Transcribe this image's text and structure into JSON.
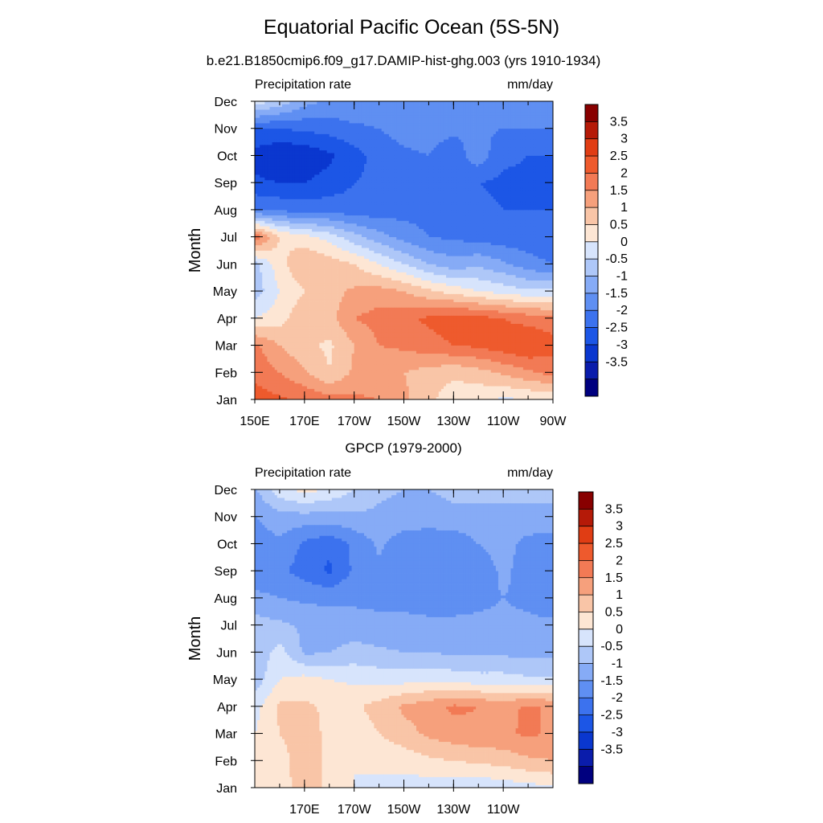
{
  "figure": {
    "title": "Equatorial Pacific Ocean (5S-5N)"
  },
  "colorbar": {
    "levels": [
      -3.5,
      -3,
      -2.5,
      -2,
      -1.5,
      -1,
      -0.5,
      0,
      0.5,
      1,
      1.5,
      2,
      2.5,
      3,
      3.5
    ],
    "labels": [
      "3.5",
      "3",
      "2.5",
      "2",
      "1.5",
      "1",
      "0.5",
      "0",
      "-0.5",
      "-1",
      "-1.5",
      "-2",
      "-2.5",
      "-3",
      "-3.5"
    ],
    "colors_low_to_high": [
      "#00007f",
      "#0a1cab",
      "#0a37cf",
      "#1c56e6",
      "#3c72ee",
      "#5f8ff2",
      "#86abf6",
      "#aec7f8",
      "#d7e4fc",
      "#fde6d4",
      "#f9c5a7",
      "#f6a07c",
      "#f27a55",
      "#ee5a2d",
      "#e03d14",
      "#b51a08",
      "#880000"
    ]
  },
  "chart_data": [
    {
      "type": "heatmap",
      "title": "b.e21.B1850cmip6.f09_g17.DAMIP-hist-ghg.003 (yrs 1910-1934)",
      "left_label": "Precipitation rate",
      "right_label": "mm/day",
      "ylabel": "Month",
      "x_ticks": [
        "150E",
        "170E",
        "170W",
        "150W",
        "130W",
        "110W",
        "90W"
      ],
      "y_ticks": [
        "Jan",
        "Feb",
        "Mar",
        "Apr",
        "May",
        "Jun",
        "Jul",
        "Aug",
        "Sep",
        "Oct",
        "Nov",
        "Dec"
      ],
      "xlim": [
        150,
        270
      ],
      "x_grid": [
        150,
        160,
        170,
        180,
        190,
        200,
        210,
        220,
        230,
        240,
        250,
        260,
        270
      ],
      "rows": [
        [
          2.7,
          2.6,
          2.4,
          2.2,
          2.1,
          2.0,
          1.6,
          1.1,
          0.7,
          0.6,
          0.4,
          0.5,
          0.5
        ],
        [
          2.4,
          2.0,
          1.6,
          1.0,
          1.6,
          1.7,
          1.5,
          1.3,
          1.1,
          1.3,
          1.6,
          1.9,
          2.2
        ],
        [
          2.1,
          1.5,
          1.1,
          0.9,
          1.5,
          2.0,
          2.1,
          2.3,
          2.5,
          2.6,
          2.8,
          3.0,
          2.7
        ],
        [
          0.5,
          0.8,
          1.4,
          1.3,
          2.0,
          2.2,
          2.4,
          2.6,
          2.8,
          2.7,
          2.5,
          2.3,
          2.2
        ],
        [
          -0.3,
          0.5,
          1.0,
          1.3,
          1.6,
          1.7,
          1.5,
          1.1,
          0.8,
          0.5,
          0.3,
          0.1,
          0.1
        ],
        [
          -0.2,
          0.8,
          1.5,
          1.3,
          1.0,
          0.5,
          0.0,
          -0.5,
          -0.8,
          -0.6,
          -0.9,
          -1.3,
          -1.5
        ],
        [
          2.4,
          1.0,
          0.7,
          0.3,
          -0.3,
          -0.8,
          -1.2,
          -1.5,
          -1.6,
          -1.7,
          -1.8,
          -1.8,
          -1.9
        ],
        [
          -1.5,
          -1.6,
          -1.7,
          -1.7,
          -1.8,
          -1.8,
          -1.7,
          -1.7,
          -1.8,
          -1.9,
          -2.0,
          -2.0,
          -2.0
        ],
        [
          -2.4,
          -2.5,
          -2.5,
          -2.3,
          -2.0,
          -1.9,
          -1.7,
          -1.6,
          -1.6,
          -2.0,
          -2.1,
          -2.1,
          -2.1
        ],
        [
          -2.7,
          -3.0,
          -2.9,
          -2.6,
          -2.2,
          -1.8,
          -1.6,
          -1.5,
          -1.8,
          -1.2,
          -1.9,
          -2.0,
          -2.0
        ],
        [
          -2.0,
          -2.0,
          -1.9,
          -1.8,
          -1.6,
          -1.5,
          -1.3,
          -1.3,
          -1.4,
          -1.4,
          -1.5,
          -1.5,
          -1.5
        ],
        [
          0.3,
          -0.2,
          -0.8,
          -1.1,
          -1.1,
          -1.2,
          -1.2,
          -1.2,
          -1.2,
          -1.2,
          -1.3,
          -1.3,
          -1.3
        ]
      ]
    },
    {
      "type": "heatmap",
      "title": "GPCP (1979-2000)",
      "left_label": "Precipitation rate",
      "right_label": "mm/day",
      "ylabel": "Month",
      "x_ticks": [
        "170E",
        "170W",
        "150W",
        "130W",
        "110W"
      ],
      "y_ticks": [
        "Jan",
        "Feb",
        "Mar",
        "Apr",
        "May",
        "Jun",
        "Jul",
        "Aug",
        "Sep",
        "Oct",
        "Nov",
        "Dec"
      ],
      "xlim": [
        150,
        270
      ],
      "x_grid": [
        150,
        160,
        170,
        180,
        190,
        200,
        210,
        220,
        230,
        240,
        250,
        260,
        270
      ],
      "rows": [
        [
          0.5,
          0.8,
          1.2,
          0.9,
          0.5,
          0.4,
          0.3,
          0.2,
          0.1,
          0.1,
          0.2,
          0.3,
          0.4
        ],
        [
          0.6,
          0.8,
          1.3,
          0.9,
          0.5,
          0.6,
          0.7,
          0.9,
          1.0,
          1.1,
          1.2,
          1.4,
          1.5
        ],
        [
          0.5,
          1.0,
          1.2,
          0.9,
          0.7,
          1.0,
          1.3,
          1.6,
          1.8,
          1.9,
          1.9,
          2.1,
          1.9
        ],
        [
          0.3,
          1.1,
          1.1,
          0.9,
          0.9,
          1.2,
          1.6,
          1.8,
          2.1,
          2.0,
          1.8,
          2.1,
          1.9
        ],
        [
          -0.3,
          0.5,
          0.7,
          0.5,
          0.4,
          0.3,
          0.3,
          0.4,
          0.3,
          0.2,
          0.2,
          0.1,
          0.1
        ],
        [
          -0.4,
          0.2,
          -0.6,
          -0.5,
          -0.3,
          -0.4,
          -0.5,
          -0.5,
          -0.6,
          -0.6,
          -0.6,
          -0.7,
          -0.7
        ],
        [
          -0.3,
          -0.4,
          -0.6,
          -0.8,
          -0.8,
          -0.9,
          -0.9,
          -0.9,
          -0.9,
          -0.9,
          -0.9,
          -0.9,
          -0.9
        ],
        [
          -0.8,
          -1.0,
          -1.1,
          -1.1,
          -1.1,
          -1.1,
          -1.1,
          -1.2,
          -1.2,
          -1.1,
          -1.0,
          -1.1,
          -1.3
        ],
        [
          -1.5,
          -1.4,
          -1.7,
          -2.1,
          -1.4,
          -1.1,
          -1.3,
          -1.4,
          -1.5,
          -1.3,
          -0.9,
          -1.2,
          -1.3
        ],
        [
          -1.3,
          -1.1,
          -1.6,
          -1.9,
          -1.4,
          -0.9,
          -1.3,
          -1.4,
          -1.4,
          -1.0,
          -0.8,
          -1.2,
          -1.3
        ],
        [
          -1.0,
          -0.7,
          -0.7,
          -0.7,
          -0.6,
          -0.6,
          -0.7,
          -0.7,
          -0.6,
          -0.6,
          -0.6,
          -0.6,
          -0.6
        ],
        [
          -0.6,
          0.3,
          0.7,
          0.4,
          0.0,
          -0.4,
          -0.5,
          -0.5,
          -0.4,
          -0.4,
          -0.4,
          -0.4,
          -0.4
        ]
      ]
    }
  ]
}
